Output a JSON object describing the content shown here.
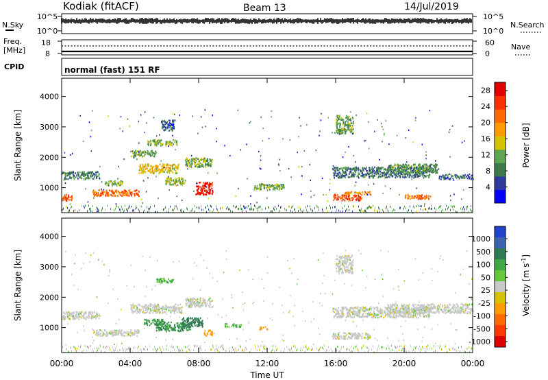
{
  "header": {
    "station": "Kodiak (fitACF)",
    "beam": "Beam 13",
    "date": "14/Jul/2019"
  },
  "noise_panel": {
    "left_label": "N.Sky",
    "right_label": "N.Search",
    "left_ticks": [
      "10^5",
      "10^0"
    ],
    "right_ticks": [
      "10^5",
      "10^0"
    ]
  },
  "freq_panel": {
    "left_label_1": "Freq.",
    "left_label_2": "[MHz]",
    "right_label": "Nave",
    "left_ticks": [
      "18",
      "8"
    ],
    "right_ticks": [
      "60",
      "0"
    ]
  },
  "cpid": {
    "label": "CPID",
    "value": "normal (fast) 151 RF"
  },
  "colors": {
    "power_scale": [
      "#0000ff",
      "#2e3a9e",
      "#3d7a4b",
      "#5fa552",
      "#d6c400",
      "#ff9a00",
      "#ff6a00",
      "#ff3000",
      "#e00000"
    ],
    "velocity_scale": [
      "#2244cc",
      "#3b63b0",
      "#2f7a53",
      "#3fa845",
      "#66c83a",
      "#c8c8c8",
      "#d8c200",
      "#ff9c00",
      "#ff6a00",
      "#ff3a00",
      "#dd0000"
    ]
  },
  "chart_data": [
    {
      "type": "heatmap",
      "title": "",
      "panel": "power",
      "ylabel": "Slant Range [km]",
      "xlabel": "",
      "ylim": [
        180,
        4600
      ],
      "yticks": [
        "1000",
        "2000",
        "3000",
        "4000"
      ],
      "colorbar_label": "Power [dB]",
      "colorbar_ticks": [
        "4",
        "8",
        "12",
        "16",
        "20",
        "24",
        "28"
      ],
      "colorbar_range": [
        0,
        30
      ],
      "echo_regions": [
        {
          "t0": 0.0,
          "t1": 2.2,
          "r0": 1300,
          "r1": 1550,
          "p": 8
        },
        {
          "t0": 0.0,
          "t1": 0.6,
          "r0": 600,
          "r1": 800,
          "p": 24
        },
        {
          "t0": 1.8,
          "t1": 4.5,
          "r0": 750,
          "r1": 950,
          "p": 22
        },
        {
          "t0": 2.5,
          "t1": 3.6,
          "r0": 1100,
          "r1": 1250,
          "p": 12
        },
        {
          "t0": 4.0,
          "t1": 5.5,
          "r0": 2050,
          "r1": 2250,
          "p": 11
        },
        {
          "t0": 5.0,
          "t1": 6.8,
          "r0": 2400,
          "r1": 2600,
          "p": 12
        },
        {
          "t0": 5.8,
          "t1": 6.6,
          "r0": 2900,
          "r1": 3250,
          "p": 6
        },
        {
          "t0": 4.5,
          "t1": 6.8,
          "r0": 1500,
          "r1": 1800,
          "p": 16
        },
        {
          "t0": 6.0,
          "t1": 7.2,
          "r0": 1100,
          "r1": 1350,
          "p": 13
        },
        {
          "t0": 7.2,
          "t1": 8.8,
          "r0": 1700,
          "r1": 2000,
          "p": 12
        },
        {
          "t0": 7.8,
          "t1": 8.8,
          "r0": 800,
          "r1": 1200,
          "p": 27
        },
        {
          "t0": 11.2,
          "t1": 13.0,
          "r0": 950,
          "r1": 1150,
          "p": 12
        },
        {
          "t0": 15.8,
          "t1": 17.5,
          "r0": 600,
          "r1": 800,
          "p": 24
        },
        {
          "t0": 16.5,
          "t1": 18.0,
          "r0": 800,
          "r1": 900,
          "p": 20
        },
        {
          "t0": 15.8,
          "t1": 21.5,
          "r0": 1350,
          "r1": 1700,
          "p": 8
        },
        {
          "t0": 19.0,
          "t1": 22.0,
          "r0": 1500,
          "r1": 1800,
          "p": 10
        },
        {
          "t0": 20.0,
          "t1": 21.5,
          "r0": 650,
          "r1": 800,
          "p": 22
        },
        {
          "t0": 22.0,
          "t1": 24.0,
          "r0": 1300,
          "r1": 1450,
          "p": 7
        },
        {
          "t0": 16.0,
          "t1": 17.0,
          "r0": 2800,
          "r1": 3400,
          "p": 11
        }
      ]
    },
    {
      "type": "heatmap",
      "title": "",
      "panel": "velocity",
      "ylabel": "Slant Range [km]",
      "xlabel": "Time UT",
      "ylim": [
        180,
        4600
      ],
      "xlim": [
        0,
        24
      ],
      "yticks": [
        "1000",
        "2000",
        "3000",
        "4000"
      ],
      "xticks": [
        "00:00",
        "04:00",
        "08:00",
        "12:00",
        "16:00",
        "20:00",
        "00:00"
      ],
      "colorbar_label": "Velocity [m s",
      "colorbar_label_sup": "-1",
      "colorbar_label_end": "]",
      "colorbar_ticks": [
        "1000",
        "500",
        "100",
        "50",
        "25",
        "-25",
        "-100",
        "-500",
        "-1000"
      ],
      "echo_regions": [
        {
          "t0": 0.0,
          "t1": 2.2,
          "r0": 1300,
          "r1": 1550,
          "v": 0
        },
        {
          "t0": 1.8,
          "t1": 4.5,
          "r0": 750,
          "r1": 950,
          "v": 0
        },
        {
          "t0": 4.8,
          "t1": 6.0,
          "r0": 1100,
          "r1": 1300,
          "v": 80
        },
        {
          "t0": 5.5,
          "t1": 7.5,
          "r0": 900,
          "r1": 1200,
          "v": 100
        },
        {
          "t0": 7.0,
          "t1": 8.2,
          "r0": 1050,
          "r1": 1350,
          "v": 400
        },
        {
          "t0": 4.0,
          "t1": 7.0,
          "r0": 1500,
          "r1": 1800,
          "v": 0
        },
        {
          "t0": 7.2,
          "t1": 8.8,
          "r0": 1700,
          "r1": 2000,
          "v": 0
        },
        {
          "t0": 5.5,
          "t1": 6.5,
          "r0": 2500,
          "r1": 2650,
          "v": 60
        },
        {
          "t0": 8.3,
          "t1": 8.8,
          "r0": 750,
          "r1": 950,
          "v": -150
        },
        {
          "t0": 9.5,
          "t1": 10.5,
          "r0": 1050,
          "r1": 1150,
          "v": 60
        },
        {
          "t0": 11.5,
          "t1": 12.0,
          "r0": 950,
          "r1": 1050,
          "v": -120
        },
        {
          "t0": 15.8,
          "t1": 21.5,
          "r0": 1350,
          "r1": 1700,
          "v": 0
        },
        {
          "t0": 19.0,
          "t1": 24.0,
          "r0": 1500,
          "r1": 1800,
          "v": 0
        },
        {
          "t0": 15.8,
          "t1": 18.0,
          "r0": 650,
          "r1": 850,
          "v": 0
        },
        {
          "t0": 16.0,
          "t1": 17.0,
          "r0": 2800,
          "r1": 3400,
          "v": 0
        }
      ]
    }
  ]
}
